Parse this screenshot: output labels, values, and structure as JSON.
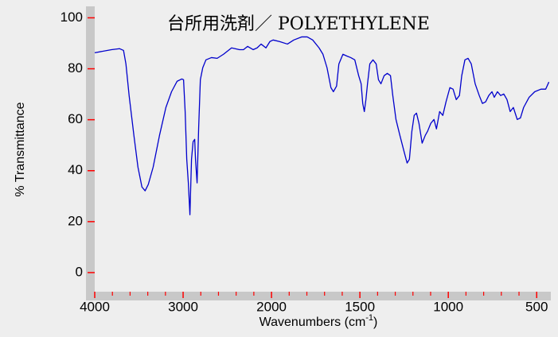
{
  "chart_data": {
    "type": "line",
    "title": "台所用洗剤／ POLYETHYLENE",
    "ylabel": "% Transmittance",
    "xlabel": {
      "text": "Wavenumbers (cm",
      "sup": "-1",
      "end": ")"
    },
    "xlim": [
      4000,
      420
    ],
    "ylim": [
      -7.5,
      104.5
    ],
    "xscale_break": 2000,
    "xscale_break_ratio": 2,
    "xticks": [
      4000,
      3000,
      2000,
      1500,
      1000,
      500
    ],
    "xminorticks": [
      3800,
      3600,
      3400,
      3200,
      2800,
      2600,
      2400,
      2200,
      1900,
      1800,
      1700,
      1600,
      1400,
      1300,
      1200,
      1100,
      900,
      800,
      700,
      600
    ],
    "yticks": [
      0,
      20,
      40,
      60,
      80,
      100
    ],
    "tick_color": "#ff0000",
    "series": [
      {
        "color": "#0000cc",
        "x": [
          4000,
          3810,
          3720,
          3674,
          3647,
          3611,
          3557,
          3511,
          3466,
          3430,
          3394,
          3339,
          3267,
          3195,
          3131,
          3068,
          3014,
          2995,
          2977,
          2959,
          2941,
          2923,
          2905,
          2887,
          2869,
          2860,
          2842,
          2824,
          2805,
          2778,
          2742,
          2679,
          2615,
          2543,
          2452,
          2362,
          2317,
          2271,
          2208,
          2163,
          2118,
          2063,
          2018,
          1991,
          1955,
          1910,
          1874,
          1830,
          1798,
          1767,
          1731,
          1709,
          1686,
          1664,
          1650,
          1632,
          1619,
          1596,
          1574,
          1552,
          1529,
          1507,
          1493,
          1484,
          1475,
          1466,
          1457,
          1444,
          1426,
          1408,
          1395,
          1381,
          1363,
          1345,
          1327,
          1314,
          1296,
          1274,
          1251,
          1233,
          1220,
          1206,
          1193,
          1180,
          1166,
          1148,
          1130,
          1117,
          1099,
          1081,
          1067,
          1049,
          1031,
          1013,
          991,
          973,
          955,
          937,
          924,
          906,
          888,
          870,
          848,
          825,
          807,
          789,
          771,
          753,
          740,
          722,
          704,
          686,
          668,
          650,
          632,
          610,
          592,
          574,
          543,
          511,
          476,
          449,
          431
        ],
        "values": [
          86.3,
          87.5,
          87.9,
          87.2,
          81.9,
          69.5,
          53.9,
          41.4,
          33.6,
          32.1,
          34.6,
          41.4,
          53.9,
          64.8,
          71.0,
          75.1,
          76.0,
          75.7,
          63.2,
          44.5,
          35.2,
          22.7,
          44.5,
          51.4,
          52.3,
          44.5,
          35.2,
          57.0,
          75.7,
          80.4,
          83.5,
          84.4,
          84.1,
          85.7,
          88.2,
          87.5,
          87.5,
          88.8,
          87.5,
          88.2,
          89.7,
          88.2,
          90.7,
          91.3,
          90.7,
          89.7,
          91.3,
          92.5,
          92.5,
          91.3,
          88.2,
          85.7,
          80.4,
          72.6,
          71.0,
          73.2,
          81.9,
          85.7,
          85.0,
          84.4,
          83.5,
          77.3,
          74.1,
          66.4,
          63.2,
          67.9,
          74.1,
          81.9,
          83.5,
          81.9,
          75.7,
          74.1,
          77.3,
          78.2,
          77.3,
          69.5,
          60.1,
          53.9,
          47.7,
          43.0,
          44.5,
          55.5,
          61.7,
          62.6,
          58.6,
          50.8,
          53.9,
          55.5,
          58.6,
          60.1,
          56.4,
          63.2,
          61.7,
          67.0,
          72.6,
          72.0,
          67.9,
          69.5,
          77.3,
          83.5,
          84.1,
          81.9,
          74.1,
          69.5,
          66.4,
          67.0,
          69.5,
          71.0,
          68.8,
          71.0,
          69.5,
          70.1,
          67.9,
          63.2,
          64.8,
          60.1,
          60.7,
          64.8,
          68.8,
          71.0,
          72.0,
          72.0,
          74.8
        ]
      }
    ]
  }
}
